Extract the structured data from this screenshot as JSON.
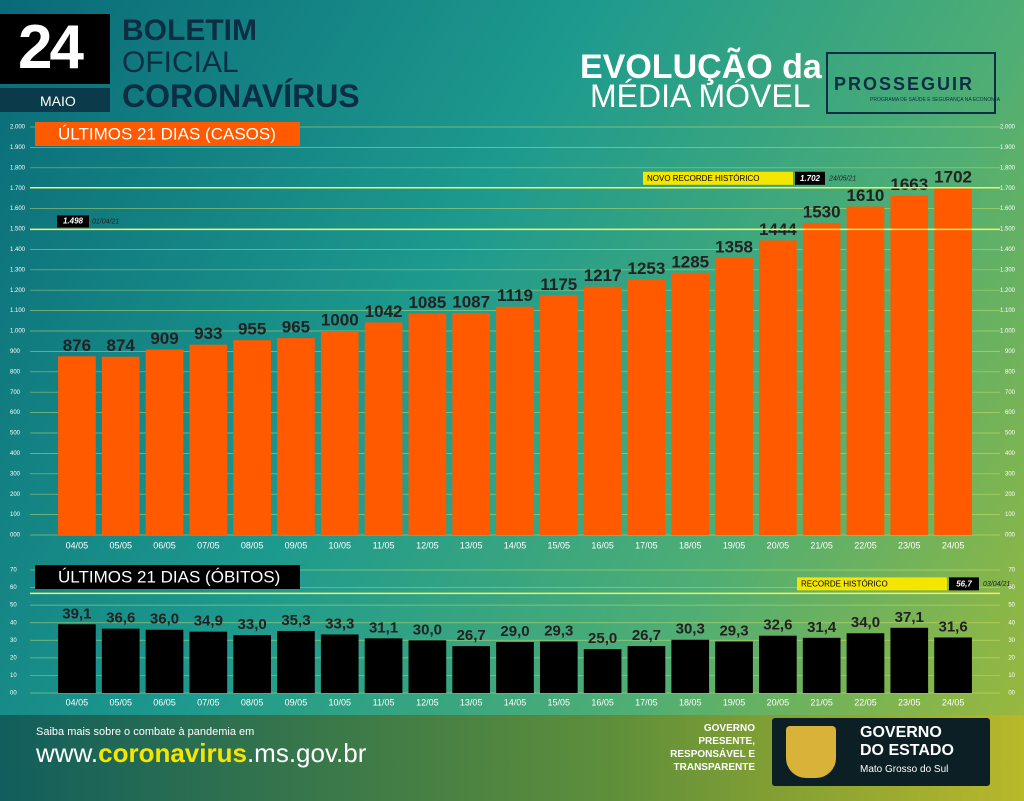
{
  "header": {
    "day": "24",
    "month": "MAIO",
    "line1": "BOLETIM",
    "line2": "OFICIAL",
    "line3": "CORONAVÍRUS",
    "headline1": "EVOLUÇÃO da",
    "headline2": "MÉDIA MÓVEL",
    "program": "PROSSEGUIR",
    "program_sub": "PROGRAMA DE SAÚDE E SEGURANÇA NA ECONOMIA"
  },
  "chart_data": [
    {
      "type": "bar",
      "title": "ÚLTIMOS 21 DIAS (CASOS)",
      "color": "#ff5a00",
      "categories": [
        "04/05",
        "05/05",
        "06/05",
        "07/05",
        "08/05",
        "09/05",
        "10/05",
        "11/05",
        "12/05",
        "13/05",
        "14/05",
        "15/05",
        "16/05",
        "17/05",
        "18/05",
        "19/05",
        "20/05",
        "21/05",
        "22/05",
        "23/05",
        "24/05"
      ],
      "values": [
        876,
        874,
        909,
        933,
        955,
        965,
        1000,
        1042,
        1085,
        1087,
        1119,
        1175,
        1217,
        1253,
        1285,
        1358,
        1444,
        1530,
        1610,
        1663,
        1702
      ],
      "ylim": [
        0,
        2000
      ],
      "yticks": [
        {
          "value": 0,
          "label": "000"
        },
        100,
        200,
        300,
        400,
        500,
        600,
        700,
        800,
        900,
        {
          "value": 1000,
          "label": "1.000"
        },
        {
          "value": 1100,
          "label": "1.100"
        },
        {
          "value": 1200,
          "label": "1.200"
        },
        {
          "value": 1300,
          "label": "1.300"
        },
        {
          "value": 1400,
          "label": "1.400"
        },
        {
          "value": 1500,
          "label": "1.500"
        },
        {
          "value": 1600,
          "label": "1.600"
        },
        {
          "value": 1700,
          "label": "1.700"
        },
        {
          "value": 1800,
          "label": "1.800"
        },
        {
          "value": 1900,
          "label": "1.900"
        },
        {
          "value": 2000,
          "label": "2.000"
        }
      ],
      "grid": true,
      "reference_lines": [
        {
          "value": 1498,
          "value_label": "1.498",
          "date": "01/04/21"
        },
        {
          "label": "NOVO RECORDE HISTÓRICO",
          "value": 1702,
          "value_label": "1.702",
          "date": "24/05/21"
        }
      ]
    },
    {
      "type": "bar",
      "title": "ÚLTIMOS 21 DIAS (ÓBITOS)",
      "color": "#000000",
      "categories": [
        "04/05",
        "05/05",
        "06/05",
        "07/05",
        "08/05",
        "09/05",
        "10/05",
        "11/05",
        "12/05",
        "13/05",
        "14/05",
        "15/05",
        "16/05",
        "17/05",
        "18/05",
        "19/05",
        "20/05",
        "21/05",
        "22/05",
        "23/05",
        "24/05"
      ],
      "values": [
        39.1,
        36.6,
        36.0,
        34.9,
        33.0,
        35.3,
        33.3,
        31.1,
        30.0,
        26.7,
        29.0,
        29.3,
        25.0,
        26.7,
        30.3,
        29.3,
        32.6,
        31.4,
        34.0,
        37.1,
        31.6
      ],
      "value_labels": [
        "39,1",
        "36,6",
        "36,0",
        "34,9",
        "33,0",
        "35,3",
        "33,3",
        "31,1",
        "30,0",
        "26,7",
        "29,0",
        "29,3",
        "25,0",
        "26,7",
        "30,3",
        "29,3",
        "32,6",
        "31,4",
        "34,0",
        "37,1",
        "31,6"
      ],
      "ylim": [
        0,
        70
      ],
      "yticks": [
        {
          "value": 0,
          "label": "00"
        },
        10,
        20,
        30,
        40,
        50,
        60,
        70
      ],
      "grid": true,
      "reference_lines": [
        {
          "label": "RECORDE HISTÓRICO",
          "value": 56.7,
          "value_label": "56,7",
          "date": "03/04/21"
        }
      ]
    }
  ],
  "footer": {
    "note": "Saiba mais sobre o combate à pandemia em",
    "url_prefix": "www.",
    "url_main": "coronavirus",
    "url_suffix": ".ms.gov.br",
    "slogan": [
      "GOVERNO",
      "PRESENTE,",
      "RESPONSÁVEL E",
      "TRANSPARENTE"
    ],
    "gov1": "GOVERNO",
    "gov2": "DO ESTADO",
    "state": "Mato Grosso do Sul"
  }
}
